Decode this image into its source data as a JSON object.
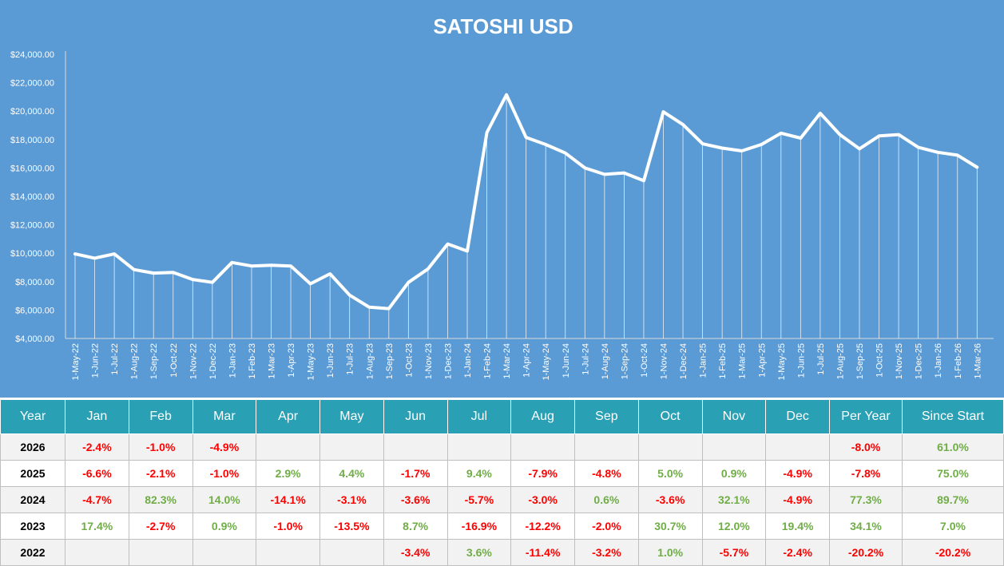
{
  "chart_data": {
    "type": "line",
    "title": "SATOSHI USD",
    "xlabel": "",
    "ylabel": "",
    "ylim": [
      4000,
      24000
    ],
    "yticks": [
      4000,
      6000,
      8000,
      10000,
      12000,
      14000,
      16000,
      18000,
      20000,
      22000,
      24000
    ],
    "ytick_labels": [
      "$4,000.00",
      "$6,000.00",
      "$8,000.00",
      "$10,000.00",
      "$12,000.00",
      "$14,000.00",
      "$16,000.00",
      "$18,000.00",
      "$20,000.00",
      "$22,000.00",
      "$24,000.00"
    ],
    "grid": false,
    "drop_lines": true,
    "line_color": "#ffffff",
    "background": "#5b9bd5",
    "categories": [
      "1-May-22",
      "1-Jun-22",
      "1-Jul-22",
      "1-Aug-22",
      "1-Sep-22",
      "1-Oct-22",
      "1-Nov-22",
      "1-Dec-22",
      "1-Jan-23",
      "1-Feb-23",
      "1-Mar-23",
      "1-Apr-23",
      "1-May-23",
      "1-Jun-23",
      "1-Jul-23",
      "1-Aug-23",
      "1-Sep-23",
      "1-Oct-23",
      "1-Nov-23",
      "1-Dec-23",
      "1-Jan-24",
      "1-Feb-24",
      "1-Mar-24",
      "1-Apr-24",
      "1-May-24",
      "1-Jun-24",
      "1-Jul-24",
      "1-Aug-24",
      "1-Sep-24",
      "1-Oct-24",
      "1-Nov-24",
      "1-Dec-24",
      "1-Jan-25",
      "1-Feb-25",
      "1-Mar-25",
      "1-Apr-25",
      "1-May-25",
      "1-Jun-25",
      "1-Jul-25",
      "1-Aug-25",
      "1-Sep-25",
      "1-Oct-25",
      "1-Nov-25",
      "1-Dec-25",
      "1-Jan-26",
      "1-Feb-26",
      "1-Mar-26"
    ],
    "values": [
      9950,
      9650,
      9950,
      8850,
      8600,
      8650,
      8150,
      7950,
      9350,
      9100,
      9150,
      9100,
      7850,
      8550,
      7050,
      6200,
      6100,
      7950,
      8900,
      10650,
      10150,
      18500,
      21150,
      18150,
      17650,
      17050,
      16000,
      15550,
      15650,
      15100,
      19950,
      19050,
      17700,
      17400,
      17200,
      17650,
      18450,
      18100,
      19850,
      18350,
      17350,
      18250,
      18350,
      17450,
      17100,
      16900,
      16050
    ]
  },
  "table": {
    "headers": [
      "Year",
      "Jan",
      "Feb",
      "Mar",
      "Apr",
      "May",
      "Jun",
      "Jul",
      "Aug",
      "Sep",
      "Oct",
      "Nov",
      "Dec",
      "Per Year",
      "Since Start"
    ],
    "rows": [
      {
        "year": "2026",
        "cells": [
          "-2.4%",
          "-1.0%",
          "-4.9%",
          "",
          "",
          "",
          "",
          "",
          "",
          "",
          "",
          "",
          "-8.0%",
          "61.0%"
        ]
      },
      {
        "year": "2025",
        "cells": [
          "-6.6%",
          "-2.1%",
          "-1.0%",
          "2.9%",
          "4.4%",
          "-1.7%",
          "9.4%",
          "-7.9%",
          "-4.8%",
          "5.0%",
          "0.9%",
          "-4.9%",
          "-7.8%",
          "75.0%"
        ]
      },
      {
        "year": "2024",
        "cells": [
          "-4.7%",
          "82.3%",
          "14.0%",
          "-14.1%",
          "-3.1%",
          "-3.6%",
          "-5.7%",
          "-3.0%",
          "0.6%",
          "-3.6%",
          "32.1%",
          "-4.9%",
          "77.3%",
          "89.7%"
        ]
      },
      {
        "year": "2023",
        "cells": [
          "17.4%",
          "-2.7%",
          "0.9%",
          "-1.0%",
          "-13.5%",
          "8.7%",
          "-16.9%",
          "-12.2%",
          "-2.0%",
          "30.7%",
          "12.0%",
          "19.4%",
          "34.1%",
          "7.0%"
        ]
      },
      {
        "year": "2022",
        "cells": [
          "",
          "",
          "",
          "",
          "",
          "-3.4%",
          "3.6%",
          "-11.4%",
          "-3.2%",
          "1.0%",
          "-5.7%",
          "-2.4%",
          "-20.2%",
          "-20.2%"
        ]
      }
    ],
    "colors": {
      "header_bg": "#2aa0b5",
      "positive": "#70ad47",
      "negative": "#ff0000"
    }
  }
}
